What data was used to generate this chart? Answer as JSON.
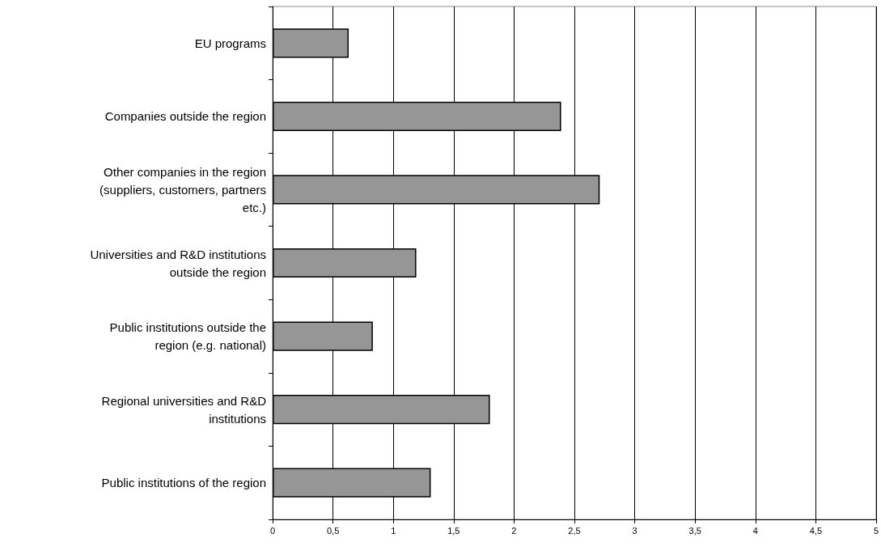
{
  "chart_data": {
    "type": "bar",
    "orientation": "horizontal",
    "categories": [
      "EU programs",
      "Companies outside the region",
      "Other companies in the region\n(suppliers, customers, partners\netc.)",
      "Universities and R&D institutions\noutside the region",
      "Public institutions outside the\nregion (e.g. national)",
      "Regional universities and R&D\ninstitutions",
      "Public institutions of the region"
    ],
    "values": [
      0.63,
      2.39,
      2.71,
      1.19,
      0.83,
      1.8,
      1.31
    ],
    "color": "#969696",
    "xlim": [
      0,
      5
    ],
    "xticks": [
      0,
      {
        "value": 0.5,
        "label": "0,5"
      },
      1,
      {
        "value": 1.5,
        "label": "1,5"
      },
      2,
      {
        "value": 2.5,
        "label": "2,5"
      },
      3,
      {
        "value": 3.5,
        "label": "3,5"
      },
      4,
      {
        "value": 4.5,
        "label": "4,5"
      },
      5
    ],
    "grid": "x"
  }
}
